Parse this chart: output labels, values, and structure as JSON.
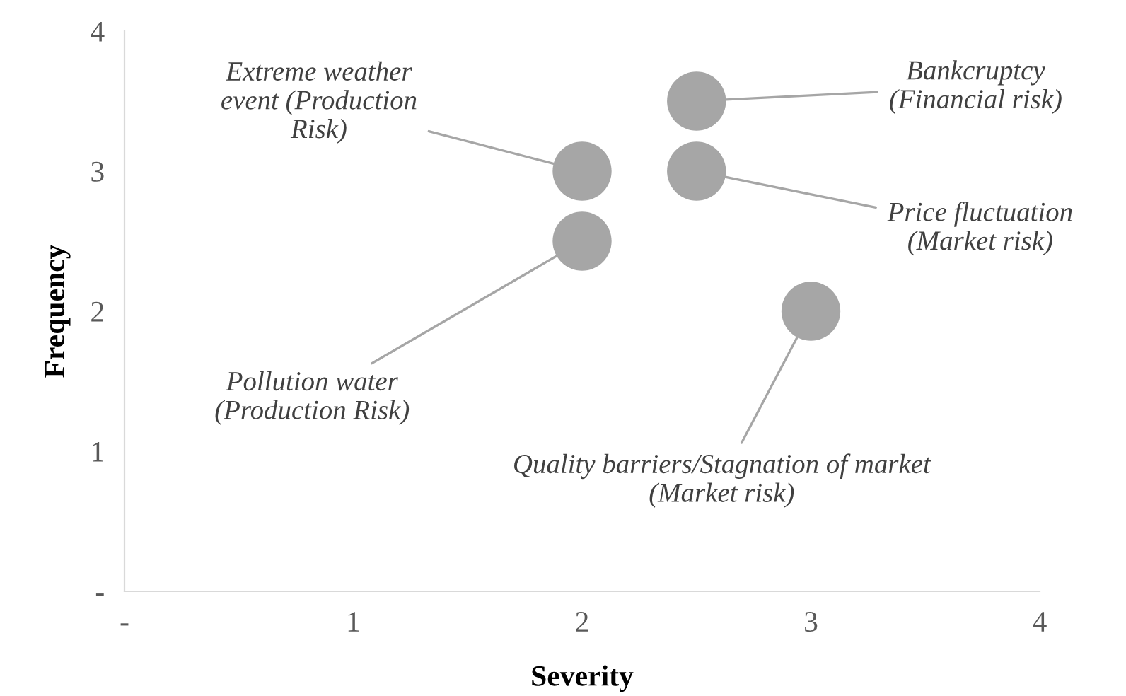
{
  "chart_data": {
    "type": "scatter",
    "xlabel": "Severity",
    "ylabel": "Frequency",
    "x": [
      2,
      2,
      2.5,
      2.5,
      3
    ],
    "series": [
      {
        "color": "#a6a6a6",
        "values": [
          3,
          2.5,
          3.5,
          3,
          2
        ]
      }
    ],
    "xlim": [
      0,
      4
    ],
    "ylim": [
      0,
      4
    ],
    "xticks": [
      {
        "value": 0,
        "label": "-"
      },
      1,
      2,
      3,
      4
    ],
    "yticks": [
      {
        "value": 0,
        "label": "-"
      },
      1,
      2,
      3,
      4
    ],
    "marker": "circle",
    "grid": false,
    "legend": false,
    "annotations": [
      {
        "text": "Extreme weather\nevent (Production\nRisk)",
        "x": 2,
        "y": 3
      },
      {
        "text": "Bankcruptcy\n(Financial risk)",
        "x": 2.5,
        "y": 3.5
      },
      {
        "text": "Price fluctuation\n(Market risk)",
        "x": 2.5,
        "y": 3
      },
      {
        "text": "Quality barriers/Stagnation of market\n(Market risk)",
        "x": 3,
        "y": 2
      },
      {
        "text": "Pollution water\n(Production Risk)",
        "x": 2,
        "y": 2.5
      }
    ]
  }
}
